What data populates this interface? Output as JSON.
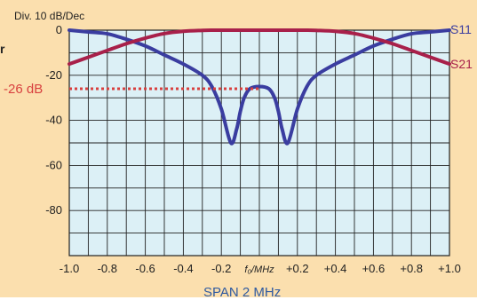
{
  "colors": {
    "background": "#fbdfae",
    "plot_area": "#dcf0f6",
    "grid": "#222222",
    "s11": "#3a3da0",
    "s21": "#a8204a",
    "marker": "#d8403f",
    "span_text": "#2f5aa0"
  },
  "header": {
    "div_label": "Div. 10 dB/Dec",
    "edge_fragment": "r"
  },
  "footer": {
    "span_label": "SPAN 2 MHz"
  },
  "chart_data": {
    "type": "line",
    "x": [
      -1.0,
      -0.9,
      -0.8,
      -0.7,
      -0.6,
      -0.5,
      -0.4,
      -0.3,
      -0.25,
      -0.2,
      -0.15,
      -0.12,
      -0.1,
      -0.08,
      -0.05,
      0.0,
      0.05,
      0.08,
      0.1,
      0.12,
      0.15,
      0.2,
      0.25,
      0.3,
      0.4,
      0.5,
      0.6,
      0.7,
      0.8,
      0.9,
      1.0
    ],
    "series": [
      {
        "name": "S11",
        "values": [
          0,
          -0.8,
          -1.6,
          -4,
          -7,
          -11,
          -15,
          -20,
          -25,
          -35,
          -50,
          -44,
          -36,
          -30,
          -26,
          -25,
          -26,
          -30,
          -36,
          -44,
          -50,
          -35,
          -25,
          -20,
          -15,
          -11,
          -7,
          -4,
          -1.6,
          -0.8,
          0
        ]
      },
      {
        "name": "S21",
        "values": [
          -15,
          -12,
          -9,
          -6,
          -3.5,
          -1.5,
          -0.5,
          -0.1,
          0,
          0,
          0,
          0,
          0,
          0,
          0,
          0,
          0,
          0,
          0,
          0,
          0,
          0,
          0,
          -0.1,
          -0.5,
          -1.5,
          -3.5,
          -6,
          -9,
          -12,
          -15
        ]
      }
    ],
    "x_ticks": [
      -1.0,
      -0.8,
      -0.6,
      -0.4,
      -0.2,
      0,
      0.2,
      0.4,
      0.6,
      0.8,
      1.0
    ],
    "x_tick_labels": [
      "-1.0",
      "-0.8",
      "-0.6",
      "-0.4",
      "-0.2",
      "",
      "+0.2",
      "+0.4",
      "+0.6",
      "+0.8",
      "+1.0"
    ],
    "x_center_label": "f₀/MHz",
    "y_ticks": [
      0,
      -20,
      -40,
      -60,
      -80
    ],
    "y_tick_labels": [
      "0",
      "-20",
      "-40",
      "-60",
      "-80"
    ],
    "xlim": [
      -1.0,
      1.0
    ],
    "ylim": [
      -100,
      0
    ],
    "grid": true,
    "annotations": [
      {
        "text": "-26 dB",
        "y": -26,
        "style": "dashed"
      }
    ]
  }
}
